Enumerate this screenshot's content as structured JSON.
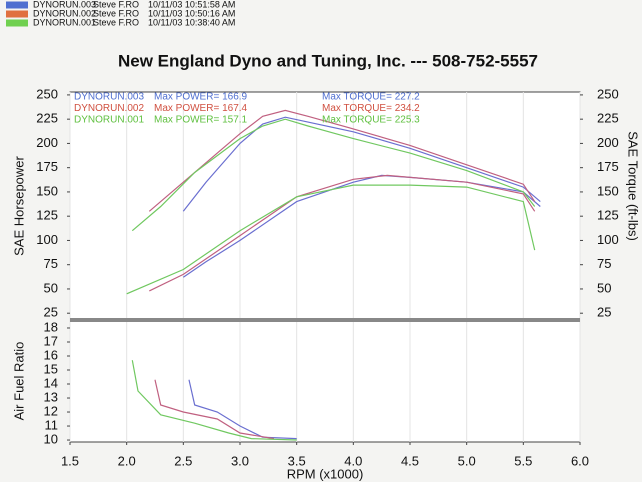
{
  "header": {
    "runs": [
      {
        "name": "DYNORUN.003",
        "driver": "Steve F.RO",
        "datetime": "10/11/03 10:51:58 AM",
        "color": "#4f6fd0"
      },
      {
        "name": "DYNORUN.002",
        "driver": "Steve F.RO",
        "datetime": "10/11/03 10:50:16 AM",
        "color": "#e07040"
      },
      {
        "name": "DYNORUN.001",
        "driver": "Steve F.RO",
        "datetime": "10/11/03 10:38:40 AM",
        "color": "#70d050"
      }
    ]
  },
  "chart_data": [
    {
      "type": "line",
      "title": "New England Dyno and Tuning, Inc. --- 508-752-5557",
      "ylabel": "SAE Horsepower",
      "y2label": "SAE Torque (ft-lbs)",
      "xlim": [
        1.5,
        6.0
      ],
      "ylim": [
        18,
        253
      ],
      "y2lim": [
        18,
        253
      ],
      "yticks": [
        25,
        50,
        75,
        100,
        125,
        150,
        175,
        200,
        225,
        250
      ],
      "y2ticks": [
        25,
        50,
        75,
        100,
        125,
        150,
        175,
        200,
        225,
        250
      ],
      "grid": true,
      "run_labels": [
        {
          "run": "DYNORUN.003",
          "max_power": "Max POWER= 166.9",
          "max_torque": "Max TORQUE= 227.2",
          "color": "#4f6fd0"
        },
        {
          "run": "DYNORUN.002",
          "max_power": "Max POWER= 167.4",
          "max_torque": "Max TORQUE= 234.2",
          "color": "#d05040"
        },
        {
          "run": "DYNORUN.001",
          "max_power": "Max POWER= 157.1",
          "max_torque": "Max TORQUE= 225.3",
          "color": "#60c040"
        }
      ],
      "series": [
        {
          "color": "#6a6fd0",
          "x": [
            2.5,
            2.7,
            3.0,
            3.5,
            4.0,
            4.25,
            4.5,
            5.0,
            5.5,
            5.65
          ],
          "values": [
            62,
            78,
            100,
            140,
            160,
            167,
            165,
            160,
            150,
            135
          ]
        },
        {
          "color": "#c06080",
          "x": [
            2.2,
            2.5,
            3.0,
            3.5,
            4.0,
            4.3,
            5.0,
            5.5,
            5.6
          ],
          "values": [
            48,
            65,
            105,
            145,
            163,
            167,
            160,
            148,
            130
          ]
        },
        {
          "color": "#70c860",
          "x": [
            2.0,
            2.5,
            3.0,
            3.5,
            4.0,
            4.5,
            5.0,
            5.5,
            5.6
          ],
          "values": [
            45,
            70,
            110,
            145,
            157,
            157,
            155,
            140,
            90
          ]
        },
        {
          "color": "#6a6fd0",
          "axis": "y2",
          "x": [
            2.5,
            2.7,
            3.0,
            3.2,
            3.4,
            3.6,
            4.0,
            4.5,
            5.0,
            5.5,
            5.65
          ],
          "values": [
            130,
            160,
            200,
            220,
            227,
            222,
            212,
            195,
            175,
            155,
            140
          ]
        },
        {
          "color": "#c06080",
          "axis": "y2",
          "x": [
            2.2,
            2.5,
            2.8,
            3.0,
            3.2,
            3.4,
            3.6,
            4.0,
            4.5,
            5.0,
            5.5,
            5.6
          ],
          "values": [
            130,
            160,
            190,
            210,
            228,
            234,
            228,
            215,
            198,
            178,
            158,
            140
          ]
        },
        {
          "color": "#70c860",
          "axis": "y2",
          "x": [
            2.05,
            2.3,
            2.6,
            3.0,
            3.2,
            3.4,
            3.6,
            4.0,
            4.5,
            5.0,
            5.5,
            5.6
          ],
          "values": [
            110,
            135,
            170,
            205,
            218,
            225,
            218,
            205,
            190,
            172,
            150,
            135
          ]
        }
      ]
    },
    {
      "type": "line",
      "ylabel": "Air Fuel Ratio",
      "xlabel": "RPM (x1000)",
      "xlim": [
        1.5,
        6.0
      ],
      "ylim": [
        9.86,
        18.57
      ],
      "xticks": [
        1.5,
        {
          "value": 2,
          "label": "2.0"
        },
        2.5,
        {
          "value": 3,
          "label": "3.0"
        },
        3.5,
        {
          "value": 4,
          "label": "4.0"
        },
        4.5,
        {
          "value": 5,
          "label": "5.0"
        },
        5.5,
        {
          "value": 6,
          "label": "6.0"
        }
      ],
      "yticks": [
        10,
        11,
        12,
        13,
        14,
        15,
        16,
        17,
        18
      ],
      "grid": true,
      "series": [
        {
          "color": "#6a6fd0",
          "x": [
            2.55,
            2.6,
            2.8,
            3.0,
            3.2,
            3.5
          ],
          "values": [
            14.3,
            12.5,
            12.0,
            11.0,
            10.2,
            10.1
          ]
        },
        {
          "color": "#c06080",
          "x": [
            2.25,
            2.3,
            2.5,
            2.8,
            3.0,
            3.3
          ],
          "values": [
            14.3,
            12.5,
            12.0,
            11.5,
            10.5,
            10.1
          ]
        },
        {
          "color": "#70c860",
          "x": [
            2.05,
            2.1,
            2.3,
            2.6,
            2.9,
            3.1,
            3.5
          ],
          "values": [
            15.7,
            13.5,
            11.8,
            11.2,
            10.5,
            10.1,
            10.0
          ]
        }
      ]
    }
  ]
}
